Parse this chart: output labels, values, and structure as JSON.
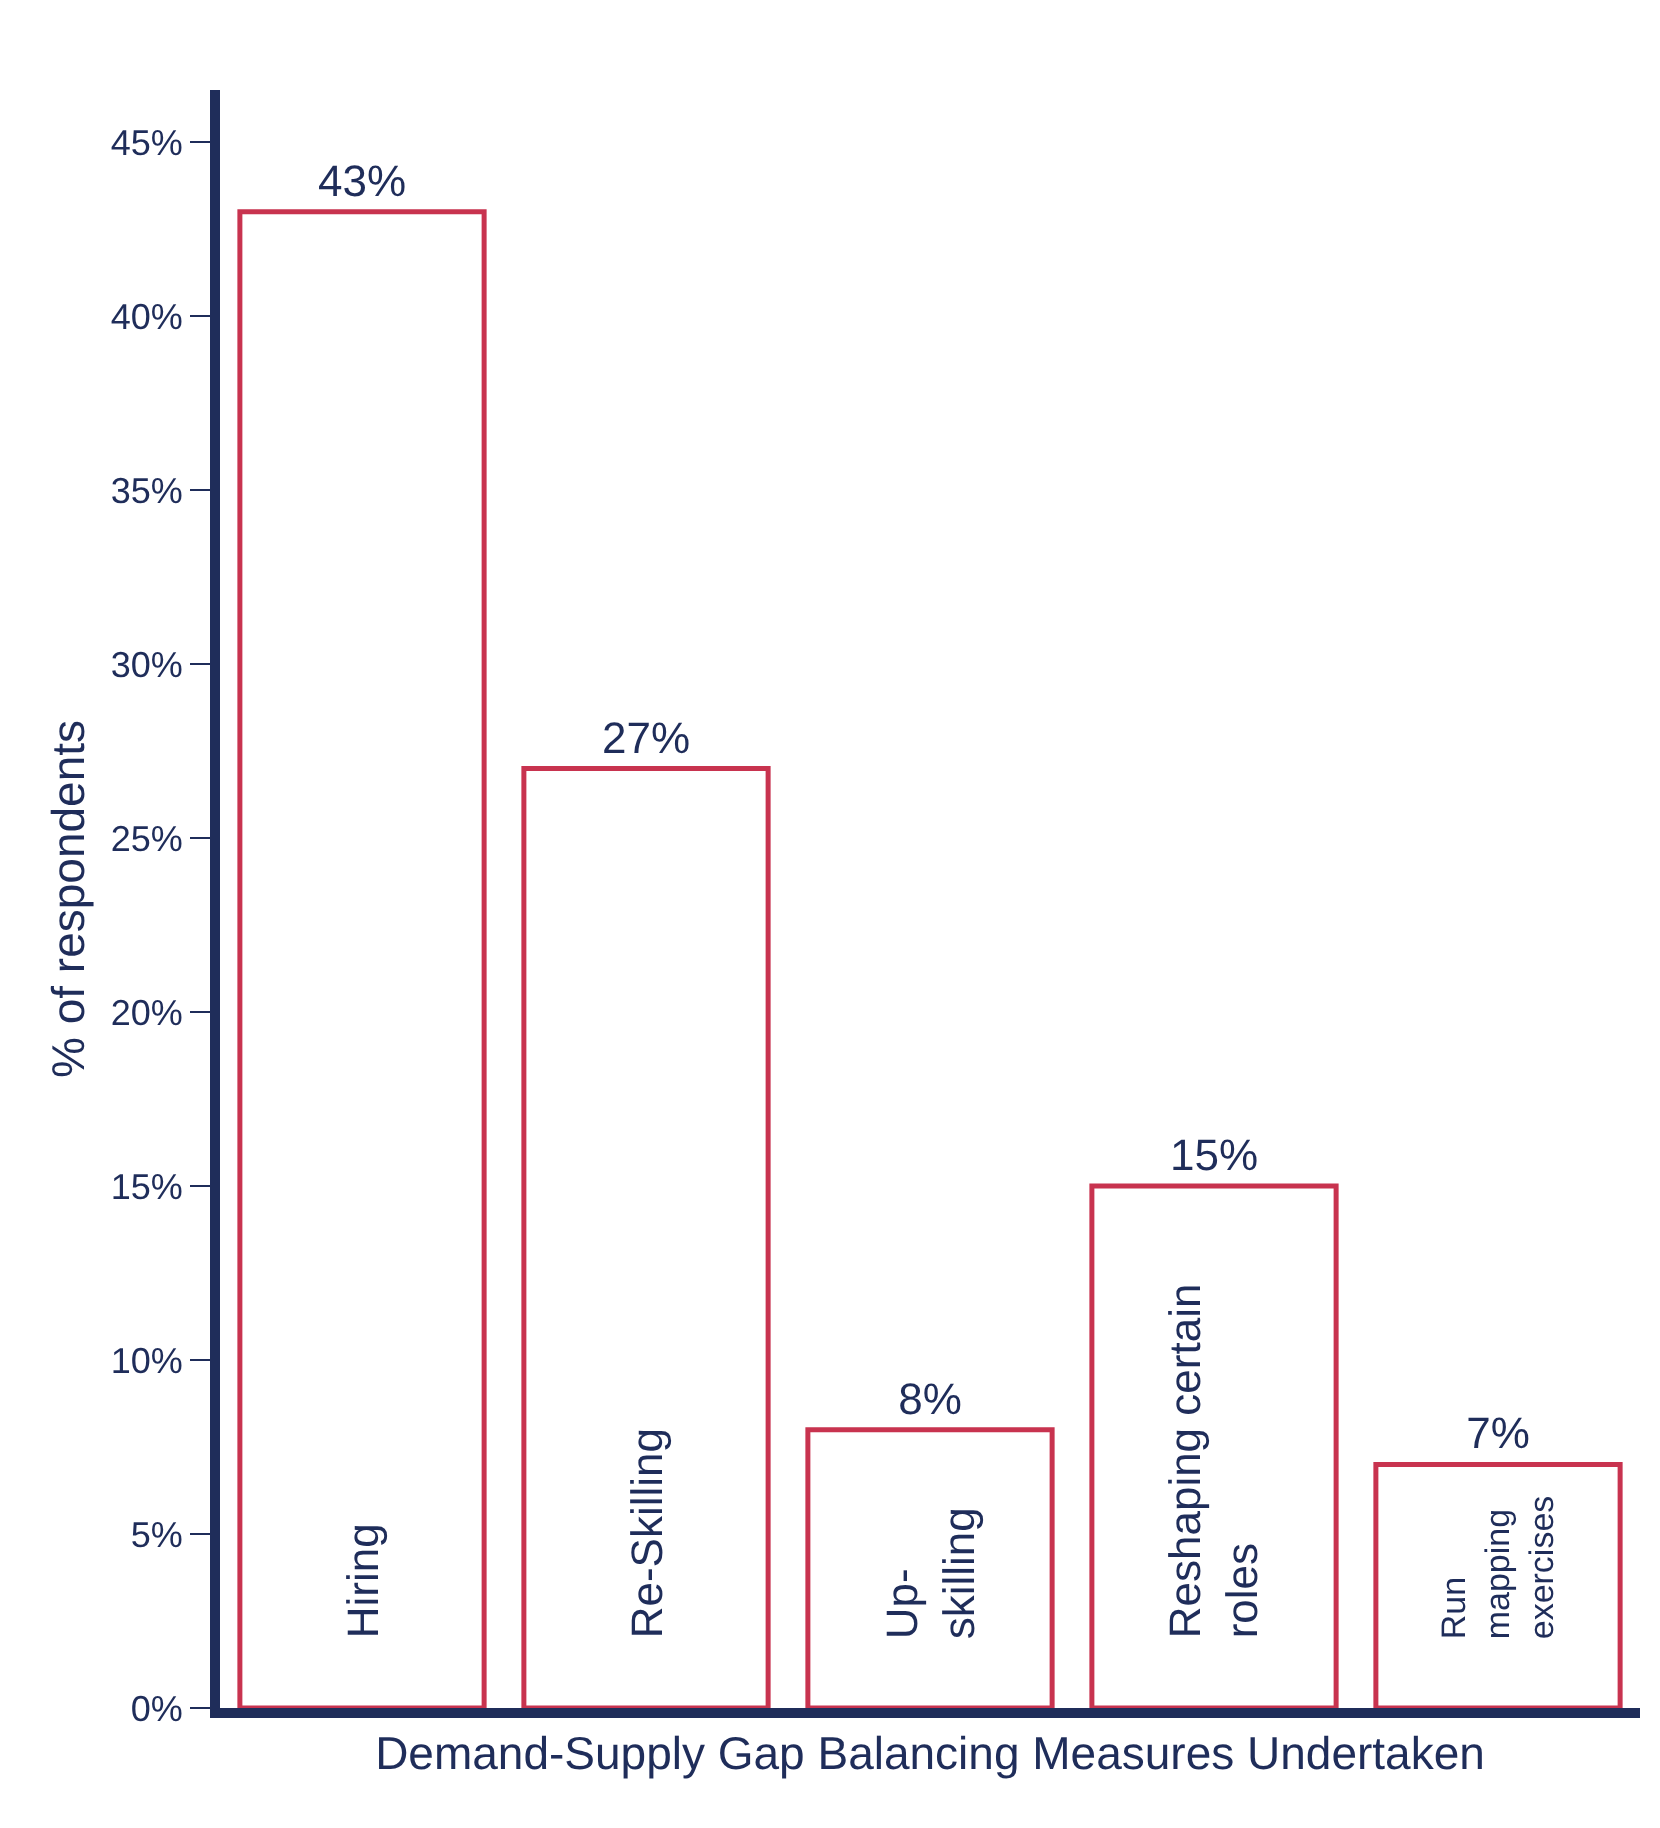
{
  "chart_data": {
    "type": "bar",
    "xlabel": "Demand-Supply Gap Balancing Measures Undertaken",
    "ylabel": "% of respondents",
    "categories": [
      "Hiring",
      "Re-Skilling",
      "Up-\nskilling",
      "Reshaping certain\nroles",
      "Run\nmapping\nexercises"
    ],
    "values": [
      43,
      27,
      8,
      15,
      7
    ],
    "value_labels": [
      "43%",
      "27%",
      "8%",
      "15%",
      "7%"
    ],
    "color": "#c8334f",
    "ylim": [
      0,
      46.5
    ],
    "yticks": [
      {
        "value": 0,
        "label": "0%"
      },
      {
        "value": 5,
        "label": "5%"
      },
      {
        "value": 10,
        "label": "10%"
      },
      {
        "value": 15,
        "label": "15%"
      },
      {
        "value": 20,
        "label": "20%"
      },
      {
        "value": 25,
        "label": "25%"
      },
      {
        "value": 30,
        "label": "30%"
      },
      {
        "value": 35,
        "label": "35%"
      },
      {
        "value": 40,
        "label": "40%"
      },
      {
        "value": 45,
        "label": "45%"
      }
    ],
    "tick_labels": "y"
  }
}
